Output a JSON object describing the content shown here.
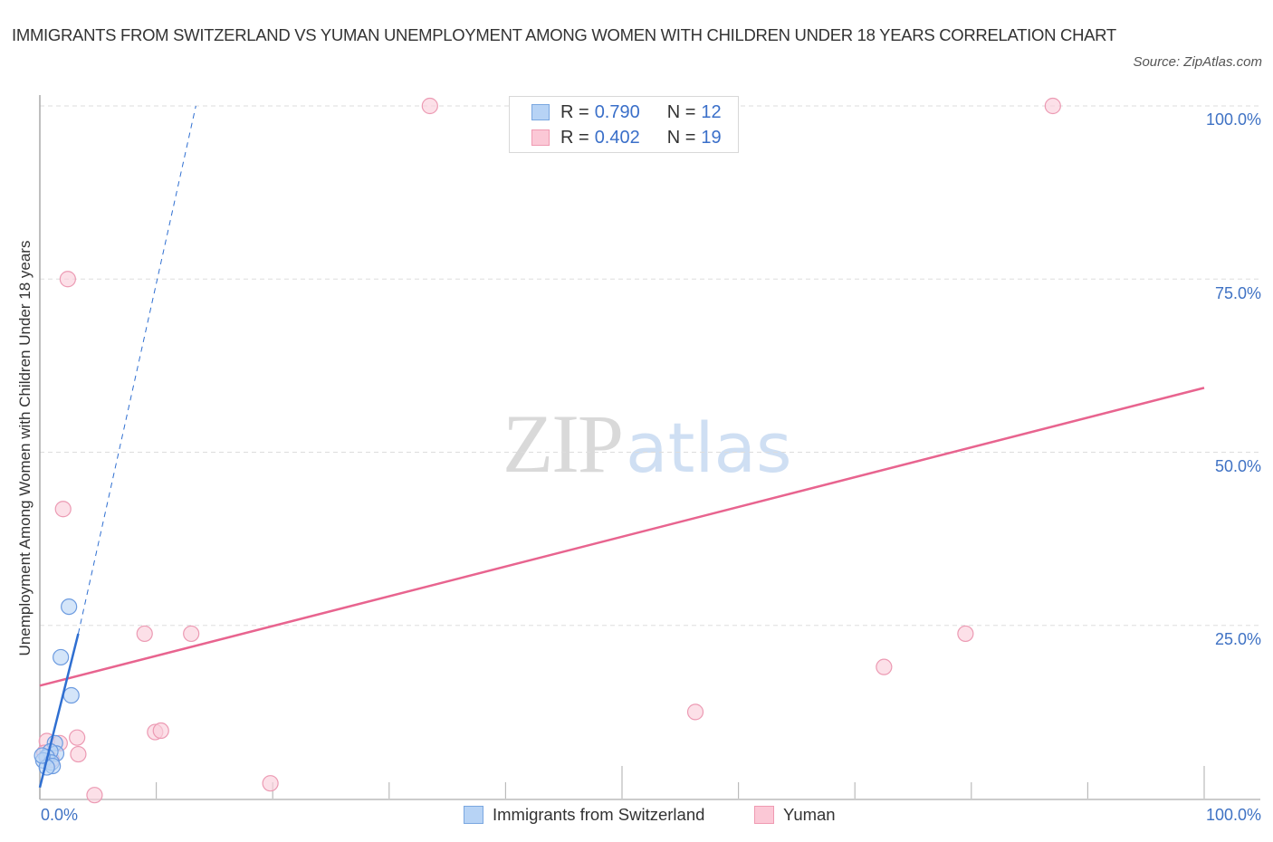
{
  "header": {
    "title": "IMMIGRANTS FROM SWITZERLAND VS YUMAN UNEMPLOYMENT AMONG WOMEN WITH CHILDREN UNDER 18 YEARS CORRELATION CHART",
    "source": "Source: ZipAtlas.com"
  },
  "watermark": {
    "zip": "ZIP",
    "atlas": "atlas"
  },
  "axes": {
    "ylabel": "Unemployment Among Women with Children Under 18 years",
    "yticks": [
      "100.0%",
      "75.0%",
      "50.0%",
      "25.0%"
    ],
    "xticks": [
      "0.0%",
      "100.0%"
    ]
  },
  "stats": [
    {
      "r_label": "R =",
      "r_value": "0.790",
      "n_label": "N =",
      "n_value": "12",
      "color": "#b7d3f5",
      "border": "#7aa7e0"
    },
    {
      "r_label": "R =",
      "r_value": "0.402",
      "n_label": "N =",
      "n_value": "19",
      "color": "#fbc8d6",
      "border": "#ef9ab2"
    }
  ],
  "legend": [
    {
      "label": "Immigrants from Switzerland",
      "color": "#b7d3f5",
      "border": "#7aa7e0"
    },
    {
      "label": "Yuman",
      "color": "#fbc8d6",
      "border": "#ef9ab2"
    }
  ],
  "colors": {
    "blue_fill": "#b7d3f5",
    "blue_stroke": "#6c9be0",
    "blue_line": "#2f6fd1",
    "pink_fill": "#fbd0dc",
    "pink_stroke": "#ec9ab3",
    "pink_line": "#e8648f",
    "tick_text": "#3f72c4",
    "grid": "#dddddd"
  },
  "chart_data": {
    "type": "scatter",
    "title": "IMMIGRANTS FROM SWITZERLAND VS YUMAN UNEMPLOYMENT AMONG WOMEN WITH CHILDREN UNDER 18 YEARS CORRELATION CHART",
    "xlabel": "",
    "ylabel": "Unemployment Among Women with Children Under 18 years",
    "xlim": [
      0,
      100
    ],
    "ylim": [
      0,
      100
    ],
    "x_tick_labels": [
      "0.0%",
      "100.0%"
    ],
    "y_tick_labels": [
      "25.0%",
      "50.0%",
      "75.0%",
      "100.0%"
    ],
    "grid": true,
    "legend_position": "bottom",
    "series": [
      {
        "name": "Immigrants from Switzerland",
        "r": 0.79,
        "n": 12,
        "points": [
          [
            2.5,
            27.7
          ],
          [
            1.8,
            20.4
          ],
          [
            2.7,
            14.9
          ],
          [
            1.3,
            8.0
          ],
          [
            1.4,
            6.5
          ],
          [
            0.9,
            6.8
          ],
          [
            0.6,
            6.0
          ],
          [
            0.3,
            5.5
          ],
          [
            1.0,
            5.2
          ],
          [
            1.1,
            4.7
          ],
          [
            0.6,
            4.5
          ],
          [
            0.2,
            6.2
          ]
        ],
        "trendline": {
          "x": [
            0,
            3.3
          ],
          "y": [
            1.6,
            23.8
          ],
          "extended_dashed_to": [
            13.4,
            100
          ]
        }
      },
      {
        "name": "Yuman",
        "r": 0.402,
        "n": 19,
        "points": [
          [
            33.5,
            100
          ],
          [
            87.0,
            100
          ],
          [
            2.4,
            75.0
          ],
          [
            2.0,
            41.8
          ],
          [
            9.0,
            23.8
          ],
          [
            13.0,
            23.8
          ],
          [
            79.5,
            23.8
          ],
          [
            72.5,
            19.0
          ],
          [
            56.3,
            12.5
          ],
          [
            9.9,
            9.6
          ],
          [
            10.4,
            9.8
          ],
          [
            3.2,
            8.8
          ],
          [
            19.8,
            2.2
          ],
          [
            4.7,
            0.5
          ],
          [
            3.3,
            6.4
          ],
          [
            0.6,
            8.3
          ],
          [
            1.7,
            8.0
          ],
          [
            0.4,
            6.6
          ],
          [
            1.0,
            5.6
          ]
        ],
        "trendline": {
          "x": [
            0,
            100
          ],
          "y": [
            16.3,
            59.3
          ]
        }
      }
    ]
  }
}
